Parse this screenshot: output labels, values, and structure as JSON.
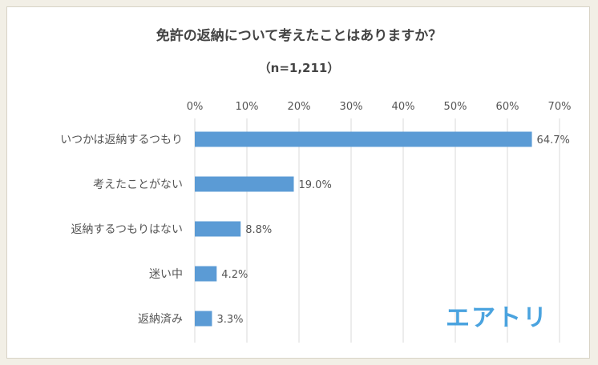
{
  "chart_data": {
    "type": "bar",
    "orientation": "horizontal",
    "title": "免許の返納について考えたことはありますか？",
    "subtitle": "（n=1,211）",
    "categories": [
      "いつかは返納するつもり",
      "考えたことがない",
      "返納するつもりはない",
      "迷い中",
      "返納済み"
    ],
    "values": [
      64.7,
      19.0,
      8.8,
      4.2,
      3.3
    ],
    "value_labels": [
      "64.7%",
      "19.0%",
      "8.8%",
      "4.2%",
      "3.3%"
    ],
    "x_ticks": [
      "0%",
      "10%",
      "20%",
      "30%",
      "40%",
      "50%",
      "60%",
      "70%"
    ],
    "xlim": [
      0,
      70
    ],
    "grid": true,
    "bar_color": "#5b9bd5"
  },
  "logo": {
    "text": "エアトリ",
    "color": "#4aa3df"
  }
}
